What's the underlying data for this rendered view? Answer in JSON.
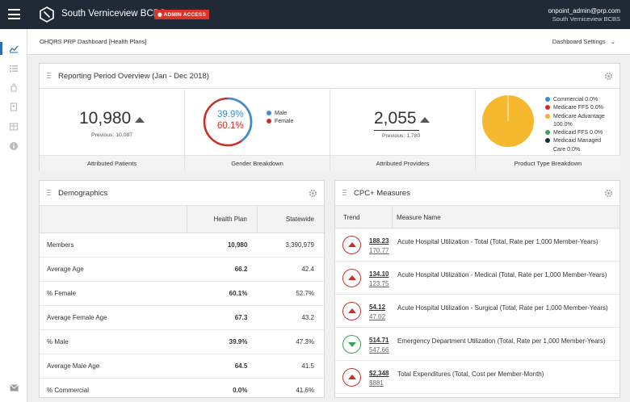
{
  "app": {
    "brand": "South Verniceview BCBS",
    "admin_badge": "ADMIN ACCESS",
    "user_email": "onpoint_admin@prp.com",
    "user_org": "South Verniceview BCBS"
  },
  "subheader": {
    "title": "OHQRS PRP Dashboard [Health Plans]",
    "settings_label": "Dashboard Settings"
  },
  "sidebar": {
    "icons": [
      "chart-line-icon",
      "list-icon",
      "hand-icon",
      "building-icon",
      "table-icon",
      "info-icon",
      "mail-icon"
    ]
  },
  "overview": {
    "title": "Reporting Period Overview (Jan - Dec 2018)",
    "patients": {
      "value": "10,980",
      "previous": "Previous: 10,087",
      "label": "Attributed Patients"
    },
    "gender": {
      "male_pct": "39.9%",
      "female_pct": "60.1%",
      "male_label": "Male",
      "female_label": "Female",
      "label": "Gender Breakdown",
      "male_fraction": 0.399,
      "male_color": "#3a8ed8",
      "female_color": "#c9302c"
    },
    "providers": {
      "value": "2,055",
      "previous": "Previous: 1,780",
      "label": "Attributed Providers"
    },
    "product": {
      "label": "Product Type Breakdown",
      "legend": [
        {
          "text": "Commercial 0.0%",
          "color": "#3a8ed8"
        },
        {
          "text": "Medicare FFS 0.0%",
          "color": "#c9302c"
        },
        {
          "text": "Medicare Advantage",
          "color": "#f0b429"
        },
        {
          "text": "100.0%",
          "color": ""
        },
        {
          "text": "Medicaid FFS 0.0%",
          "color": "#3aa35a"
        },
        {
          "text": "Medicaid Managed",
          "color": "#1f2a36"
        },
        {
          "text": "Care 0.0%",
          "color": ""
        }
      ],
      "pie_color": "#f5b82e"
    }
  },
  "demographics": {
    "title": "Demographics",
    "headers": [
      "",
      "Health Plan",
      "Statewide"
    ],
    "rows": [
      {
        "label": "Members",
        "hp": "10,980",
        "sw": "3,390,979"
      },
      {
        "label": "Average Age",
        "hp": "66.2",
        "sw": "42.4"
      },
      {
        "label": "% Female",
        "hp": "60.1%",
        "sw": "52.7%"
      },
      {
        "label": "Average Female Age",
        "hp": "67.3",
        "sw": "43.2"
      },
      {
        "label": "% Male",
        "hp": "39.9%",
        "sw": "47.3%"
      },
      {
        "label": "Average Male Age",
        "hp": "64.5",
        "sw": "41.5"
      },
      {
        "label": "% Commercial",
        "hp": "0.0%",
        "sw": "41.6%"
      }
    ]
  },
  "cpc": {
    "title": "CPC+ Measures",
    "col_trend": "Trend",
    "col_measure": "Measure Name",
    "measures": [
      {
        "trend": "up",
        "current": "188.23",
        "previous": "170.77",
        "name": "Acute Hospital Utilization - Total (Total, Rate per 1,000 Member-Years)"
      },
      {
        "trend": "up",
        "current": "134.10",
        "previous": "123.75",
        "name": "Acute Hospital Utilization - Medical (Total, Rate per 1,000 Member-Years)"
      },
      {
        "trend": "up",
        "current": "54.12",
        "previous": "47.02",
        "name": "Acute Hospital Utilization - Surgical (Total, Rate per 1,000 Member-Years)"
      },
      {
        "trend": "down",
        "current": "514.71",
        "previous": "547.66",
        "name": "Emergency Department Utilization (Total, Rate per 1,000 Member-Years)"
      },
      {
        "trend": "up",
        "current": "$2,348",
        "previous": "$881",
        "name": "Total Expenditures (Total, Cost per Member-Month)"
      }
    ],
    "colors": {
      "up": "#c9302c",
      "down": "#3aa35a"
    }
  }
}
